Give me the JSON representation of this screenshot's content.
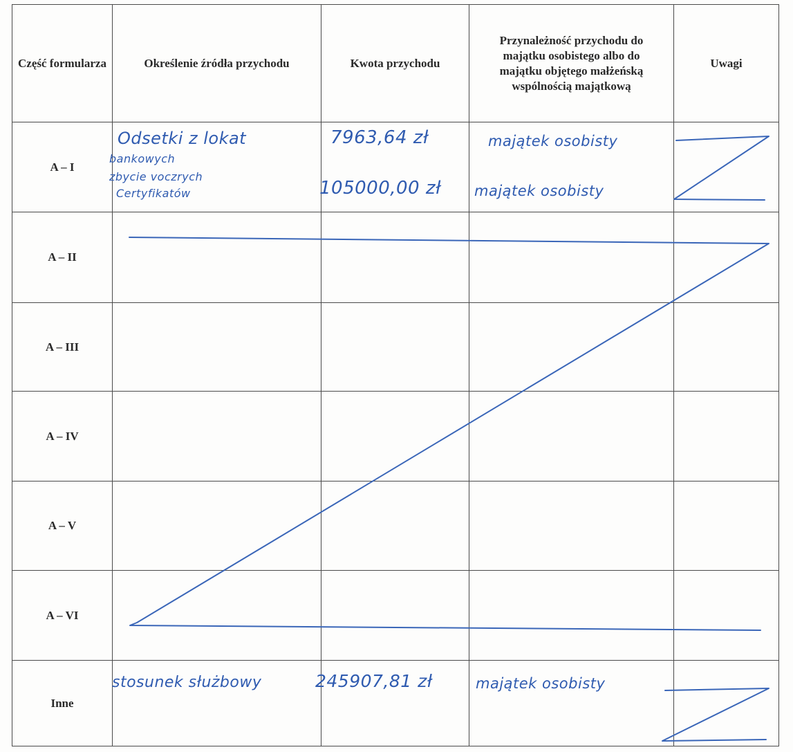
{
  "header": {
    "part": "Część formularza",
    "source": "Określenie źródła przychodu",
    "amount": "Kwota przychodu",
    "ownership": "Przynależność przychodu do majątku osobistego albo do majątku objętego małżeńską wspólnością majątkową",
    "remarks": "Uwagi"
  },
  "rows": [
    {
      "part": "A – I"
    },
    {
      "part": "A – II"
    },
    {
      "part": "A – III"
    },
    {
      "part": "A – IV"
    },
    {
      "part": "A – V"
    },
    {
      "part": "A – VI"
    },
    {
      "part": "Inne"
    }
  ],
  "handwriting": {
    "a1_source_1": "Odsetki z lokat",
    "a1_source_2": "bankowych",
    "a1_source_3": "zbycie voczrych",
    "a1_source_4": "Certyfikatów",
    "a1_amount_1": "7963,64 zł",
    "a1_amount_2": "105000,00 zł",
    "a1_ownership_1": "majątek osobisty",
    "a1_ownership_2": "majątek osobisty",
    "inne_source": "stosunek służbowy",
    "inne_amount": "245907,81 zł",
    "inne_ownership": "majątek osobisty"
  },
  "colors": {
    "ink": "#2f5bb0",
    "print": "#2a2a2a",
    "border": "#4a4a4a"
  }
}
